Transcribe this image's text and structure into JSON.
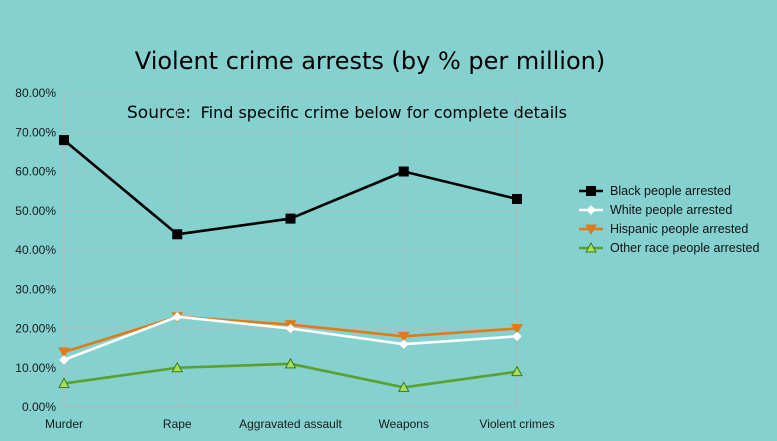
{
  "chart_data": {
    "type": "line",
    "title": "Violent crime arrests (by % per million)",
    "subtitle_key": "Source:",
    "subtitle_value": "Find specific crime below for complete details",
    "categories": [
      "Murder",
      "Rape",
      "Aggravated assault",
      "Weapons",
      "Violent crimes"
    ],
    "y_ticks": [
      "0.00%",
      "10.00%",
      "20.00%",
      "30.00%",
      "40.00%",
      "50.00%",
      "60.00%",
      "70.00%",
      "80.00%"
    ],
    "ylim": [
      0,
      80
    ],
    "y_unit": "%",
    "grid": true,
    "legend_position": "right",
    "series": [
      {
        "name": "Black people arrested",
        "values": [
          68,
          44,
          48,
          60,
          53
        ],
        "color": "#000000",
        "marker": "square"
      },
      {
        "name": "White people arrested",
        "values": [
          12,
          23,
          20,
          16,
          18
        ],
        "color": "#ffffff",
        "marker": "diamond"
      },
      {
        "name": "Hispanic people arrested",
        "values": [
          14,
          23,
          21,
          18,
          20
        ],
        "color": "#e07b1a",
        "marker": "triangle-down"
      },
      {
        "name": "Other race people arrested",
        "values": [
          6,
          10,
          11,
          5,
          9
        ],
        "color": "#5aa02c",
        "marker": "triangle-up"
      }
    ]
  }
}
